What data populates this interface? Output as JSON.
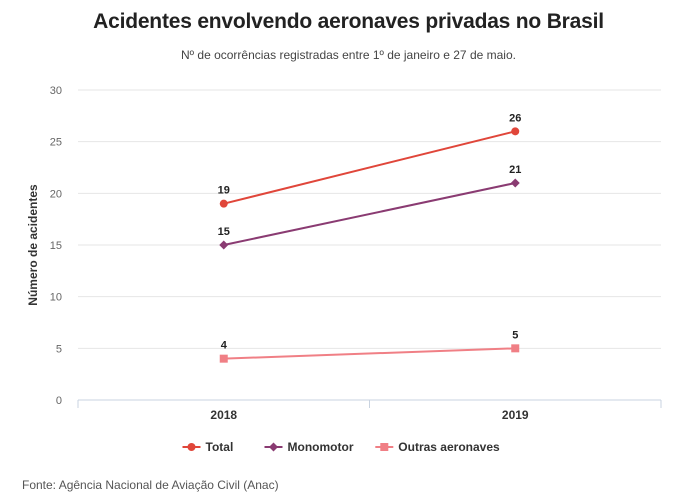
{
  "title": "Acidentes envolvendo aeronaves privadas no Brasil",
  "subtitle": "Nº de ocorrências registradas entre 1º de janeiro e 27 de maio.",
  "source": "Fonte: Agência Nacional de Aviação Civil (Anac)",
  "chart_data": {
    "type": "line",
    "title": "Acidentes envolvendo aeronaves privadas no Brasil",
    "subtitle": "Nº de ocorrências registradas entre 1º de janeiro e 27 de maio.",
    "xlabel": "",
    "ylabel": "Número de acidentes",
    "categories": [
      "2018",
      "2019"
    ],
    "ylim": [
      0,
      30
    ],
    "yticks": [
      0,
      5,
      10,
      15,
      20,
      25,
      30
    ],
    "grid": true,
    "legend_position": "bottom",
    "series": [
      {
        "name": "Total",
        "values": [
          19,
          26
        ],
        "color": "#e0463a",
        "marker": "circle"
      },
      {
        "name": "Monomotor",
        "values": [
          15,
          21
        ],
        "color": "#8a3b72",
        "marker": "diamond"
      },
      {
        "name": "Outras aeronaves",
        "values": [
          4,
          5
        ],
        "color": "#f07f85",
        "marker": "square"
      }
    ]
  }
}
